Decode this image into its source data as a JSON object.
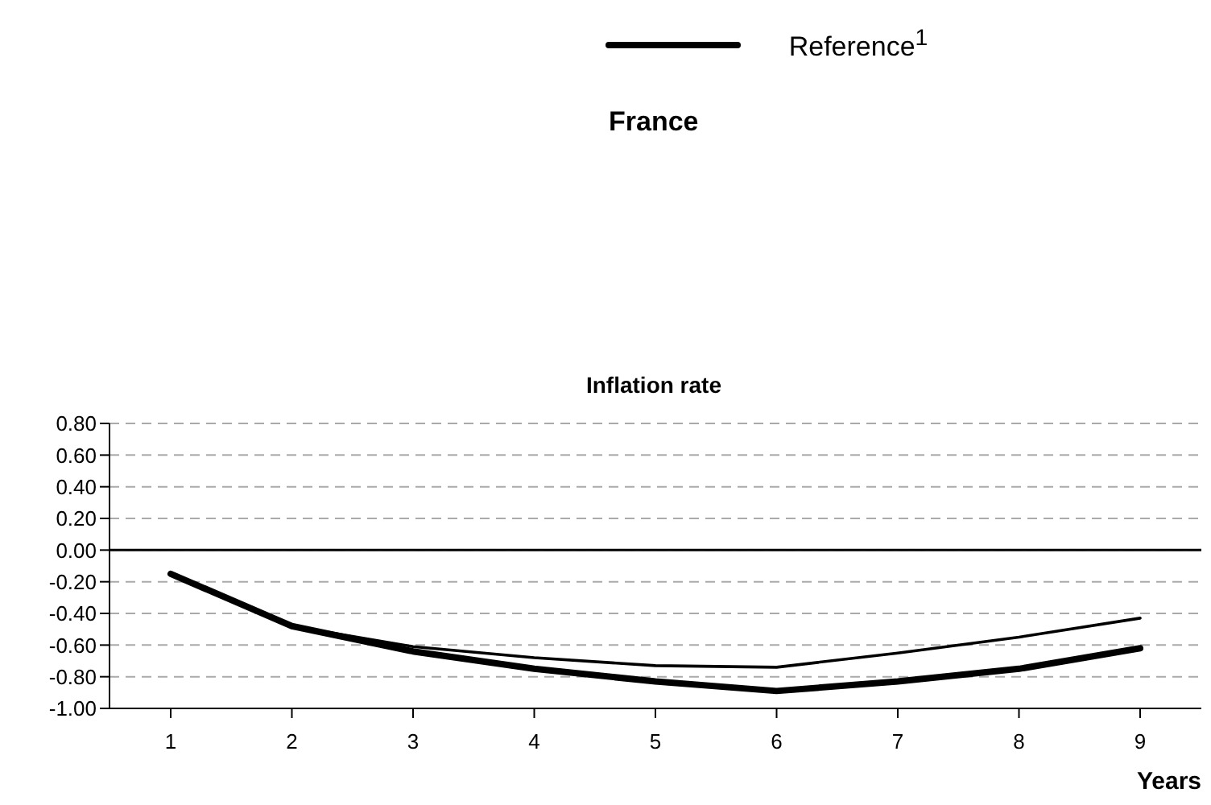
{
  "chart_data": {
    "type": "line",
    "title": "France",
    "subtitle": "Inflation rate",
    "xlabel": "Years",
    "categories": [
      "1",
      "2",
      "3",
      "4",
      "5",
      "6",
      "7",
      "8",
      "9"
    ],
    "series": [
      {
        "name": "Reference$^{1}$",
        "color": "#000000",
        "values": [
          -0.15,
          -0.48,
          -0.64,
          -0.75,
          -0.83,
          -0.89,
          -0.83,
          -0.75,
          -0.62
        ]
      },
      {
        "color": "#000000",
        "values": [
          -0.15,
          -0.48,
          -0.61,
          -0.68,
          -0.73,
          -0.74,
          -0.65,
          -0.55,
          -0.43
        ]
      }
    ],
    "ylim": [
      -1,
      0.8
    ],
    "yticks": [
      {
        "value": -1,
        "label": "-1.00"
      },
      {
        "value": -0.8,
        "label": "-0.80"
      },
      {
        "value": -0.6,
        "label": "-0.60"
      },
      {
        "value": -0.4,
        "label": "-0.40"
      },
      {
        "value": -0.2,
        "label": "-0.20"
      },
      {
        "value": 0,
        "label": "0.00"
      },
      {
        "value": 0.2,
        "label": "0.20"
      },
      {
        "value": 0.4,
        "label": "0.40"
      },
      {
        "value": 0.6,
        "label": "0.60"
      },
      {
        "value": 0.8,
        "label": "0.80"
      }
    ],
    "ref_lines": [
      {
        "axis": "y",
        "value": 0,
        "color": "#000000"
      }
    ],
    "grid": "y",
    "legend": "top",
    "marker": "none",
    "line_style": "solid"
  }
}
